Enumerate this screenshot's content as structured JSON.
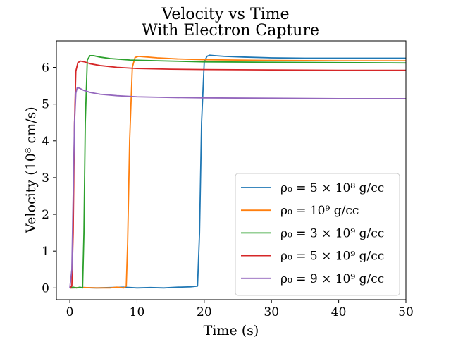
{
  "chart_data": {
    "type": "line",
    "title": "Velocity vs Time",
    "subtitle": "With Electron Capture",
    "xlabel": "Time (s)",
    "ylabel": "Velocity (10⁸ cm/s)",
    "xlim": [
      -2,
      50
    ],
    "ylim": [
      -0.32,
      6.72
    ],
    "xticks": [
      0,
      10,
      20,
      30,
      40,
      50
    ],
    "yticks": [
      0,
      1,
      2,
      3,
      4,
      5,
      6
    ],
    "grid": false,
    "legend": "lower-right",
    "series": [
      {
        "name": "ρ₀ = 5 × 10⁸ g/cc",
        "color": "#1f77b4",
        "x": [
          0,
          2,
          4,
          6,
          8,
          10,
          12,
          14,
          16,
          18,
          19,
          19.3,
          19.6,
          20,
          20.4,
          20.8,
          21.5,
          23,
          26,
          30,
          35,
          40,
          45,
          50
        ],
        "y": [
          0,
          0.01,
          0,
          0.01,
          0.02,
          0.0,
          0.01,
          0.0,
          0.02,
          0.03,
          0.05,
          1.5,
          4.5,
          6.15,
          6.3,
          6.33,
          6.32,
          6.3,
          6.28,
          6.26,
          6.25,
          6.25,
          6.25,
          6.25
        ]
      },
      {
        "name": "ρ₀ = 10⁹ g/cc",
        "color": "#ff7f0e",
        "x": [
          0,
          2,
          4,
          6,
          7,
          8,
          8.4,
          8.6,
          8.9,
          9.3,
          9.7,
          10.2,
          11,
          13,
          16,
          20,
          25,
          30,
          40,
          50
        ],
        "y": [
          0,
          0.01,
          0,
          0.0,
          0.02,
          0.0,
          0.05,
          1.2,
          4.0,
          6.0,
          6.27,
          6.3,
          6.29,
          6.26,
          6.23,
          6.21,
          6.2,
          6.19,
          6.18,
          6.18
        ]
      },
      {
        "name": "ρ₀ = 3 × 10⁹ g/cc",
        "color": "#2ca02c",
        "x": [
          0,
          0.5,
          1,
          1.5,
          1.9,
          2.1,
          2.3,
          2.6,
          3.0,
          3.5,
          4.5,
          6,
          9,
          13,
          20,
          30,
          40,
          50
        ],
        "y": [
          0,
          0.02,
          0,
          0.02,
          0.0,
          1.5,
          4.5,
          6.2,
          6.32,
          6.32,
          6.28,
          6.24,
          6.2,
          6.18,
          6.15,
          6.14,
          6.13,
          6.12
        ]
      },
      {
        "name": "ρ₀ = 5 × 10⁹ g/cc",
        "color": "#d62728",
        "x": [
          0,
          0.3,
          0.5,
          0.7,
          0.9,
          1.2,
          1.6,
          2.2,
          3,
          4.5,
          7,
          10,
          15,
          20,
          30,
          40,
          50
        ],
        "y": [
          0,
          0.05,
          1.5,
          4.5,
          5.9,
          6.13,
          6.17,
          6.15,
          6.1,
          6.05,
          6.0,
          5.97,
          5.95,
          5.94,
          5.93,
          5.92,
          5.92
        ]
      },
      {
        "name": "ρ₀ = 9 × 10⁹ g/cc",
        "color": "#9467bd",
        "x": [
          0,
          0.3,
          0.5,
          0.7,
          0.9,
          1.1,
          1.5,
          2,
          3,
          4.5,
          7,
          10,
          15,
          20,
          30,
          40,
          50
        ],
        "y": [
          0,
          0.5,
          2.5,
          4.5,
          5.3,
          5.45,
          5.43,
          5.38,
          5.32,
          5.27,
          5.23,
          5.2,
          5.18,
          5.17,
          5.16,
          5.15,
          5.15
        ]
      }
    ]
  }
}
